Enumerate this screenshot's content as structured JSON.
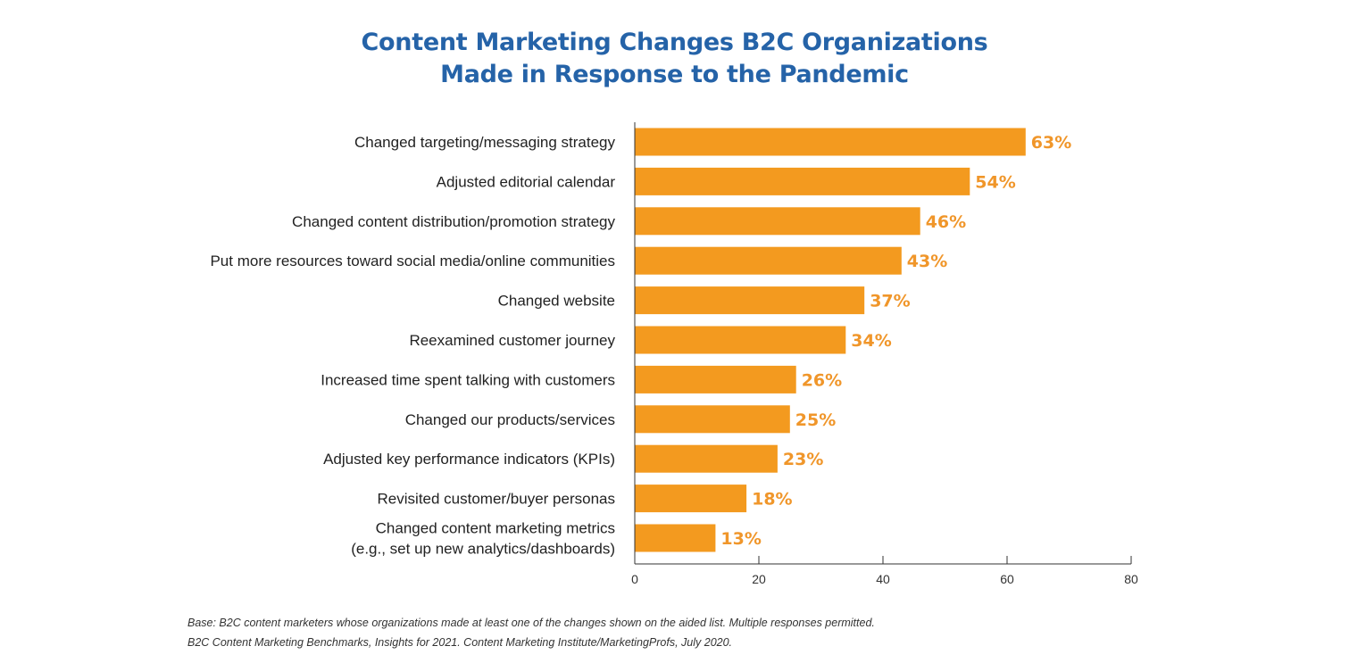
{
  "chart_data": {
    "type": "bar",
    "orientation": "horizontal",
    "title": [
      "Content Marketing Changes B2C Organizations",
      "Made in Response to the Pandemic"
    ],
    "xlabel": "",
    "ylabel": "",
    "xlim": [
      0,
      80
    ],
    "x_ticks": [
      "0",
      "20",
      "40",
      "60",
      "80"
    ],
    "categories": [
      [
        "Changed targeting/messaging strategy"
      ],
      [
        "Adjusted editorial calendar"
      ],
      [
        "Changed content distribution/promotion strategy"
      ],
      [
        "Put more resources toward social media/online communities"
      ],
      [
        "Changed website"
      ],
      [
        "Reexamined customer journey"
      ],
      [
        "Increased time spent talking with customers"
      ],
      [
        "Changed our products/services"
      ],
      [
        "Adjusted key performance indicators (KPIs)"
      ],
      [
        "Revisited customer/buyer personas"
      ],
      [
        "Changed content marketing metrics",
        "(e.g., set up new analytics/dashboards)"
      ]
    ],
    "values": [
      63,
      54,
      46,
      43,
      37,
      34,
      26,
      25,
      23,
      18,
      13
    ],
    "value_labels": [
      "63%",
      "54%",
      "46%",
      "43%",
      "37%",
      "34%",
      "26%",
      "25%",
      "23%",
      "18%",
      "13%"
    ],
    "grid": false,
    "legend": "none"
  },
  "colors": {
    "bar": "#f39a1f",
    "value_label": "#f0962a",
    "title": "#2563a8",
    "axis": "#333333"
  },
  "footnotes": {
    "base": "Base: B2C content marketers whose organizations made at least one of the changes shown on the aided list. Multiple responses permitted.",
    "source": "B2C Content Marketing Benchmarks, Insights for 2021. Content Marketing Institute/MarketingProfs, July 2020."
  }
}
